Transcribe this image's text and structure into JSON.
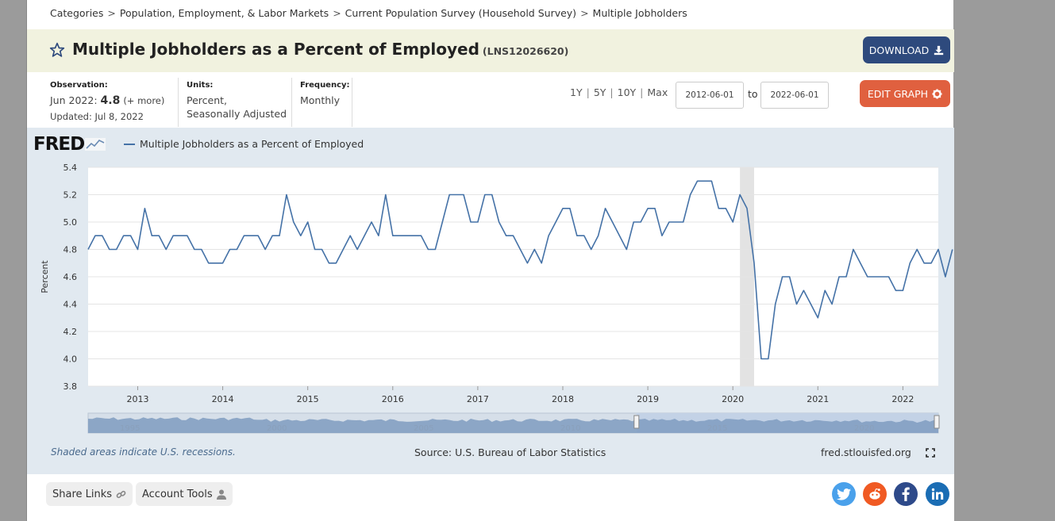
{
  "breadcrumb": {
    "items": [
      "Categories",
      "Population, Employment, & Labor Markets",
      "Current Population Survey (Household Survey)",
      "Multiple Jobholders"
    ],
    "separator": ">"
  },
  "header": {
    "title": "Multiple Jobholders as a Percent of Employed",
    "series_id": "(LNS12026620)",
    "download_label": "DOWNLOAD"
  },
  "meta": {
    "observation_label": "Observation:",
    "observation_date": "Jun 2022:",
    "observation_value": "4.8",
    "observation_more": "(+ more)",
    "updated": "Updated: Jul 8, 2022",
    "units_label": "Units:",
    "units_line1": "Percent,",
    "units_line2": "Seasonally Adjusted",
    "frequency_label": "Frequency:",
    "frequency": "Monthly"
  },
  "controls": {
    "ranges": [
      "1Y",
      "5Y",
      "10Y",
      "Max"
    ],
    "start_date": "2012-06-01",
    "to_label": "to",
    "end_date": "2022-06-01",
    "edit_label": "EDIT GRAPH"
  },
  "chart_data": {
    "type": "line",
    "logo": "FRED",
    "title": "",
    "xlabel": "",
    "ylabel": "Percent",
    "legend": "Multiple Jobholders as a Percent of Employed",
    "legend_position": "top-left",
    "grid": true,
    "ylim": [
      3.8,
      5.4
    ],
    "yticks": [
      "3.8",
      "4.0",
      "4.2",
      "4.4",
      "4.6",
      "4.8",
      "5.0",
      "5.2",
      "5.4"
    ],
    "xlim": [
      "2012-06",
      "2022-06"
    ],
    "xticks": [
      "2013",
      "2014",
      "2015",
      "2016",
      "2017",
      "2018",
      "2019",
      "2020",
      "2021",
      "2022"
    ],
    "recessions": [
      {
        "start": "2020-02",
        "end": "2020-04"
      }
    ],
    "color": "#4572a7",
    "start": "2012-06",
    "series": [
      {
        "name": "Multiple Jobholders as a Percent of Employed",
        "values": [
          4.8,
          4.9,
          4.9,
          4.8,
          4.8,
          4.9,
          4.9,
          4.8,
          5.1,
          4.9,
          4.9,
          4.8,
          4.9,
          4.9,
          4.9,
          4.8,
          4.8,
          4.7,
          4.7,
          4.7,
          4.8,
          4.8,
          4.9,
          4.9,
          4.9,
          4.8,
          4.9,
          4.9,
          5.2,
          5.0,
          4.9,
          5.0,
          4.8,
          4.8,
          4.7,
          4.7,
          4.8,
          4.9,
          4.8,
          4.9,
          5.0,
          4.9,
          5.2,
          4.9,
          4.9,
          4.9,
          4.9,
          4.9,
          4.8,
          4.8,
          5.0,
          5.2,
          5.2,
          5.2,
          5.0,
          5.0,
          5.2,
          5.2,
          5.0,
          4.9,
          4.9,
          4.8,
          4.7,
          4.8,
          4.7,
          4.9,
          5.0,
          5.1,
          5.1,
          4.9,
          4.9,
          4.8,
          4.9,
          5.1,
          5.0,
          4.9,
          4.8,
          5.0,
          5.0,
          5.1,
          5.1,
          4.9,
          5.0,
          5.0,
          5.0,
          5.2,
          5.3,
          5.3,
          5.3,
          5.1,
          5.1,
          5.0,
          5.2,
          5.1,
          4.7,
          4.0,
          4.0,
          4.4,
          4.6,
          4.6,
          4.4,
          4.5,
          4.4,
          4.3,
          4.5,
          4.4,
          4.6,
          4.6,
          4.8,
          4.7,
          4.6,
          4.6,
          4.6,
          4.6,
          4.5,
          4.5,
          4.7,
          4.8,
          4.7,
          4.7,
          4.8,
          4.6,
          4.8
        ]
      }
    ],
    "navigator_labels": [
      "1995",
      "2000",
      "2005",
      "2010",
      "2015",
      "2020"
    ]
  },
  "footer": {
    "recession_note": "Shaded areas indicate U.S. recessions.",
    "source": "Source: U.S. Bureau of Labor Statistics",
    "site": "fred.stlouisfed.org"
  },
  "bottom": {
    "share_label": "Share Links",
    "account_label": "Account Tools"
  }
}
